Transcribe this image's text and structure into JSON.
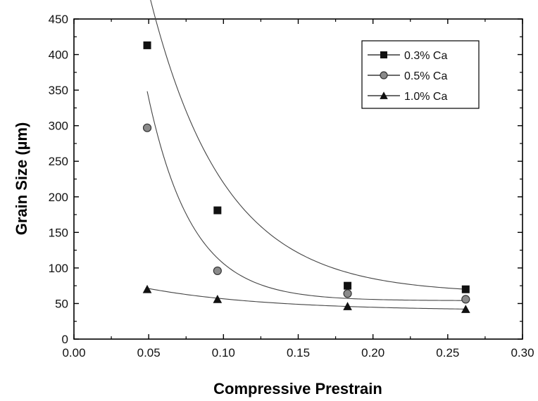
{
  "chart_data": {
    "type": "scatter",
    "title": "",
    "xlabel": "Compressive Prestrain",
    "ylabel": "Grain Size (µm)",
    "xlim": [
      0.0,
      0.3
    ],
    "ylim": [
      0,
      450
    ],
    "xticks": [
      0.0,
      0.05,
      0.1,
      0.15,
      0.2,
      0.25,
      0.3
    ],
    "xtick_labels": [
      "0.00",
      "0.05",
      "0.10",
      "0.15",
      "0.20",
      "0.25",
      "0.30"
    ],
    "yticks": [
      0,
      50,
      100,
      150,
      200,
      250,
      300,
      350,
      400,
      450
    ],
    "ytick_labels": [
      "0",
      "50",
      "100",
      "150",
      "200",
      "250",
      "300",
      "350",
      "400",
      "450"
    ],
    "grid": false,
    "legend_position": "top-right",
    "series": [
      {
        "name": "0.3% Ca",
        "marker": "square",
        "color": "#111111",
        "x": [
          0.049,
          0.096,
          0.183,
          0.262
        ],
        "y": [
          413,
          181,
          75,
          70
        ],
        "fit_curve": {
          "type": "exponential",
          "a": 64,
          "b": 1150,
          "c": 0.05
        }
      },
      {
        "name": "0.5% Ca",
        "marker": "circle",
        "color": "#777777",
        "x": [
          0.049,
          0.096,
          0.183,
          0.262
        ],
        "y": [
          297,
          96,
          64,
          56
        ],
        "fit_curve": {
          "type": "exponential",
          "a": 54,
          "b": 1550,
          "c": 0.0295
        }
      },
      {
        "name": "1.0% Ca",
        "marker": "triangle",
        "color": "#111111",
        "x": [
          0.049,
          0.096,
          0.183,
          0.262
        ],
        "y": [
          70,
          56,
          46,
          42
        ],
        "fit_curve": {
          "type": "exponential",
          "a": 40,
          "b": 58,
          "c": 0.08
        }
      }
    ]
  }
}
